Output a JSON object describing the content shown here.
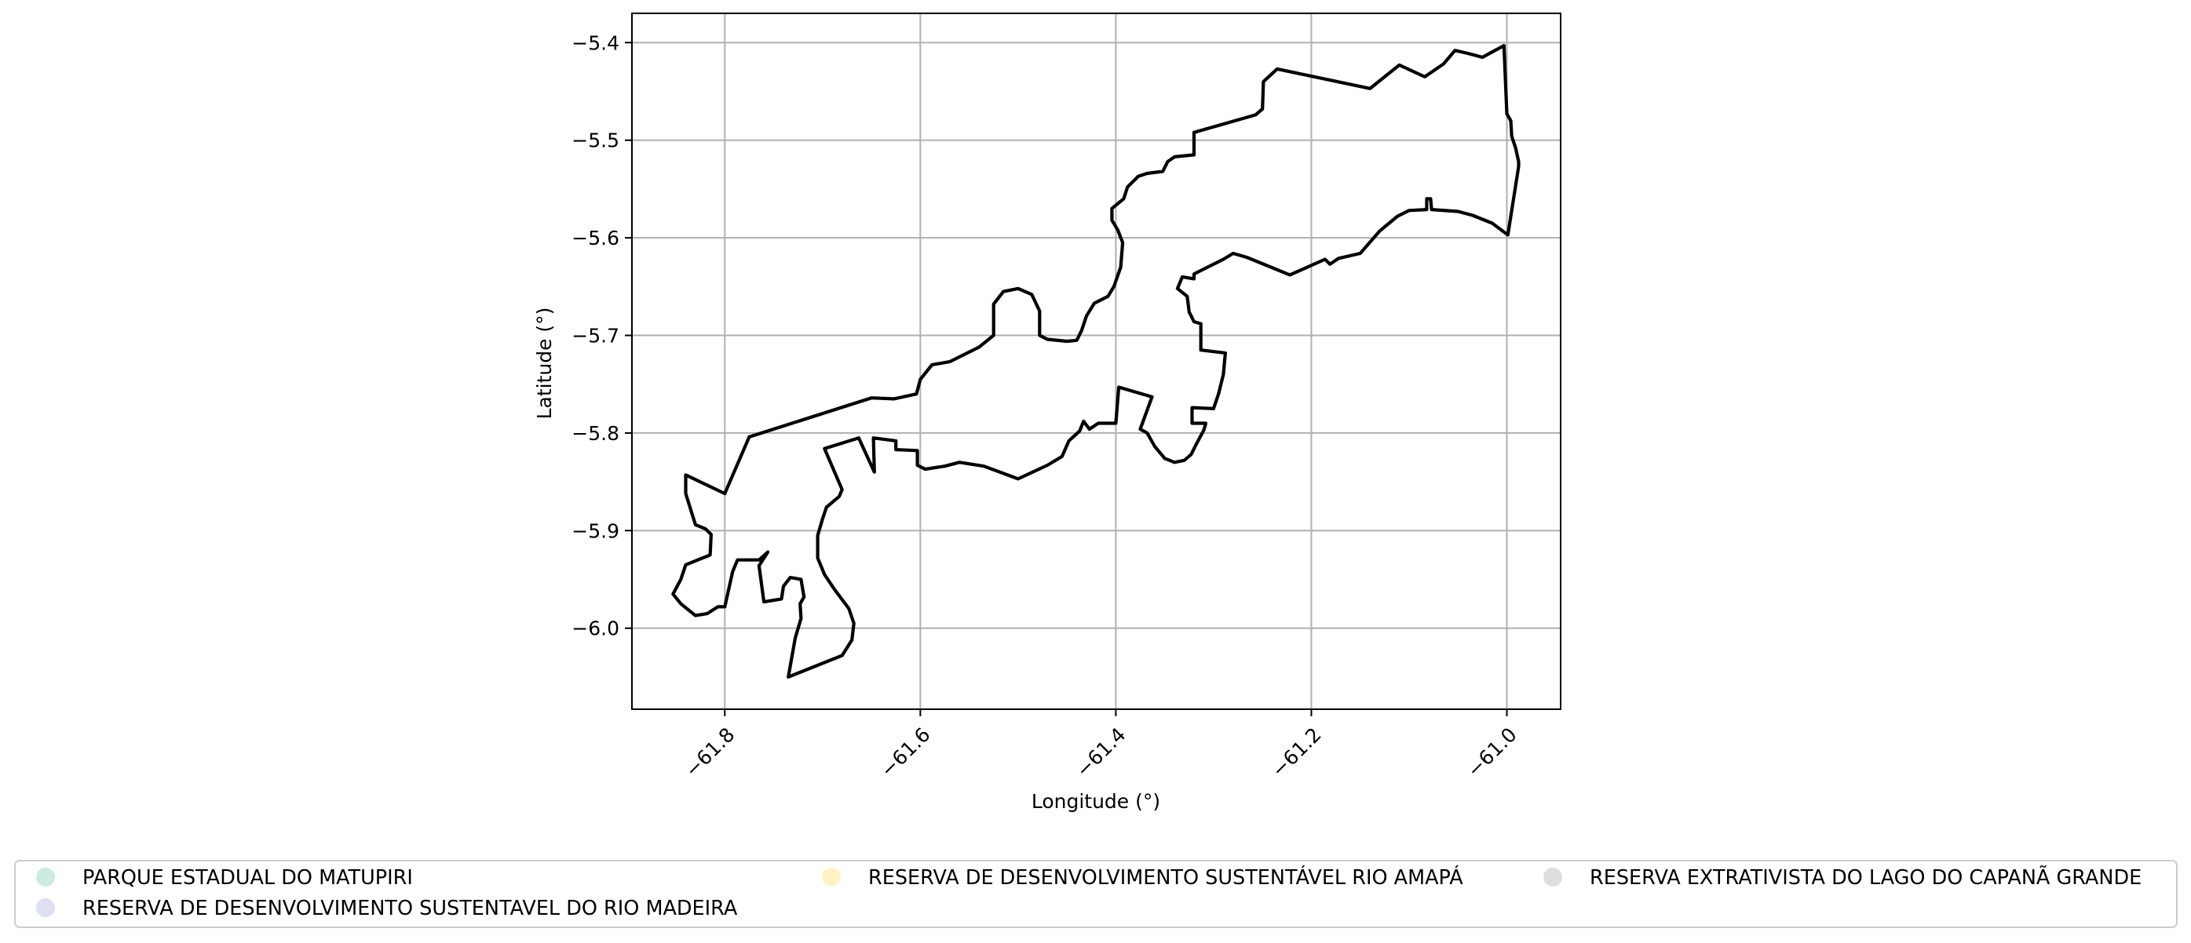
{
  "chart_data": {
    "type": "map",
    "xlabel": "Longitude (°)",
    "ylabel": "Latitude (°)",
    "xlim": [
      -61.895,
      -60.945
    ],
    "ylim": [
      -6.083,
      -5.37
    ],
    "grid": true,
    "x_ticks": [
      {
        "value": -61.8,
        "label": "−61.8"
      },
      {
        "value": -61.6,
        "label": "−61.6"
      },
      {
        "value": -61.4,
        "label": "−61.4"
      },
      {
        "value": -61.2,
        "label": "−61.2"
      },
      {
        "value": -61.0,
        "label": "−61.0"
      }
    ],
    "y_ticks": [
      {
        "value": -5.4,
        "label": "−5.4"
      },
      {
        "value": -5.5,
        "label": "−5.5"
      },
      {
        "value": -5.6,
        "label": "−5.6"
      },
      {
        "value": -5.7,
        "label": "−5.7"
      },
      {
        "value": -5.8,
        "label": "−5.8"
      },
      {
        "value": -5.9,
        "label": "−5.9"
      },
      {
        "value": -6.0,
        "label": "−6.0"
      }
    ],
    "legend_position": "bottom",
    "legend": [
      {
        "label": "PARQUE ESTADUAL DO MATUPIRI",
        "color": "#ccebe0"
      },
      {
        "label": "RESERVA DE DESENVOLVIMENTO SUSTENTÁVEL RIO AMAPÁ",
        "color": "#fff3c6"
      },
      {
        "label": "RESERVA EXTRATIVISTA DO LAGO DO CAPANÃ GRANDE",
        "color": "#dedede"
      },
      {
        "label": "RESERVA DE DESENVOLVIMENTO SUSTENTAVEL DO RIO MADEIRA",
        "color": "#dde1f1"
      }
    ],
    "boundary_color": "#000000",
    "boundary": [
      [
        -61.84,
        -5.843
      ],
      [
        -61.8,
        -5.862
      ],
      [
        -61.775,
        -5.804
      ],
      [
        -61.65,
        -5.764
      ],
      [
        -61.627,
        -5.765
      ],
      [
        -61.604,
        -5.76
      ],
      [
        -61.6,
        -5.745
      ],
      [
        -61.588,
        -5.73
      ],
      [
        -61.57,
        -5.727
      ],
      [
        -61.54,
        -5.712
      ],
      [
        -61.525,
        -5.7
      ],
      [
        -61.525,
        -5.668
      ],
      [
        -61.515,
        -5.655
      ],
      [
        -61.5,
        -5.652
      ],
      [
        -61.486,
        -5.658
      ],
      [
        -61.478,
        -5.675
      ],
      [
        -61.478,
        -5.7
      ],
      [
        -61.47,
        -5.704
      ],
      [
        -61.45,
        -5.706
      ],
      [
        -61.44,
        -5.705
      ],
      [
        -61.435,
        -5.695
      ],
      [
        -61.43,
        -5.68
      ],
      [
        -61.422,
        -5.667
      ],
      [
        -61.408,
        -5.66
      ],
      [
        -61.402,
        -5.65
      ],
      [
        -61.395,
        -5.63
      ],
      [
        -61.393,
        -5.605
      ],
      [
        -61.398,
        -5.592
      ],
      [
        -61.404,
        -5.582
      ],
      [
        -61.404,
        -5.57
      ],
      [
        -61.392,
        -5.56
      ],
      [
        -61.388,
        -5.548
      ],
      [
        -61.377,
        -5.537
      ],
      [
        -61.368,
        -5.534
      ],
      [
        -61.352,
        -5.532
      ],
      [
        -61.347,
        -5.522
      ],
      [
        -61.34,
        -5.517
      ],
      [
        -61.32,
        -5.515
      ],
      [
        -61.32,
        -5.492
      ],
      [
        -61.257,
        -5.474
      ],
      [
        -61.25,
        -5.468
      ],
      [
        -61.249,
        -5.44
      ],
      [
        -61.235,
        -5.427
      ],
      [
        -61.14,
        -5.447
      ],
      [
        -61.11,
        -5.423
      ],
      [
        -61.084,
        -5.435
      ],
      [
        -61.065,
        -5.422
      ],
      [
        -61.053,
        -5.408
      ],
      [
        -61.04,
        -5.411
      ],
      [
        -61.025,
        -5.415
      ],
      [
        -61.003,
        -5.403
      ],
      [
        -61.0,
        -5.473
      ],
      [
        -60.996,
        -5.48
      ],
      [
        -60.995,
        -5.496
      ],
      [
        -60.991,
        -5.508
      ],
      [
        -60.988,
        -5.522
      ],
      [
        -60.988,
        -5.527
      ],
      [
        -60.999,
        -5.597
      ],
      [
        -61.015,
        -5.585
      ],
      [
        -61.035,
        -5.577
      ],
      [
        -61.05,
        -5.573
      ],
      [
        -61.077,
        -5.571
      ],
      [
        -61.078,
        -5.56
      ],
      [
        -61.082,
        -5.56
      ],
      [
        -61.082,
        -5.571
      ],
      [
        -61.1,
        -5.572
      ],
      [
        -61.112,
        -5.578
      ],
      [
        -61.13,
        -5.593
      ],
      [
        -61.15,
        -5.616
      ],
      [
        -61.172,
        -5.621
      ],
      [
        -61.181,
        -5.627
      ],
      [
        -61.186,
        -5.622
      ],
      [
        -61.222,
        -5.638
      ],
      [
        -61.266,
        -5.62
      ],
      [
        -61.28,
        -5.616
      ],
      [
        -61.29,
        -5.622
      ],
      [
        -61.32,
        -5.637
      ],
      [
        -61.32,
        -5.642
      ],
      [
        -61.332,
        -5.64
      ],
      [
        -61.337,
        -5.652
      ],
      [
        -61.327,
        -5.66
      ],
      [
        -61.325,
        -5.676
      ],
      [
        -61.32,
        -5.686
      ],
      [
        -61.313,
        -5.688
      ],
      [
        -61.313,
        -5.715
      ],
      [
        -61.288,
        -5.718
      ],
      [
        -61.29,
        -5.74
      ],
      [
        -61.295,
        -5.76
      ],
      [
        -61.3,
        -5.775
      ],
      [
        -61.322,
        -5.774
      ],
      [
        -61.322,
        -5.79
      ],
      [
        -61.308,
        -5.79
      ],
      [
        -61.31,
        -5.797
      ],
      [
        -61.318,
        -5.812
      ],
      [
        -61.323,
        -5.822
      ],
      [
        -61.33,
        -5.828
      ],
      [
        -61.34,
        -5.83
      ],
      [
        -61.35,
        -5.826
      ],
      [
        -61.36,
        -5.814
      ],
      [
        -61.368,
        -5.8
      ],
      [
        -61.375,
        -5.796
      ],
      [
        -61.363,
        -5.763
      ],
      [
        -61.397,
        -5.753
      ],
      [
        -61.4,
        -5.79
      ],
      [
        -61.418,
        -5.79
      ],
      [
        -61.427,
        -5.796
      ],
      [
        -61.433,
        -5.788
      ],
      [
        -61.437,
        -5.798
      ],
      [
        -61.448,
        -5.808
      ],
      [
        -61.455,
        -5.824
      ],
      [
        -61.47,
        -5.833
      ],
      [
        -61.5,
        -5.847
      ],
      [
        -61.535,
        -5.834
      ],
      [
        -61.56,
        -5.83
      ],
      [
        -61.575,
        -5.834
      ],
      [
        -61.595,
        -5.837
      ],
      [
        -61.603,
        -5.833
      ],
      [
        -61.603,
        -5.818
      ],
      [
        -61.625,
        -5.817
      ],
      [
        -61.625,
        -5.808
      ],
      [
        -61.648,
        -5.805
      ],
      [
        -61.647,
        -5.84
      ],
      [
        -61.663,
        -5.805
      ],
      [
        -61.698,
        -5.816
      ],
      [
        -61.68,
        -5.858
      ],
      [
        -61.683,
        -5.865
      ],
      [
        -61.696,
        -5.876
      ],
      [
        -61.7,
        -5.888
      ],
      [
        -61.705,
        -5.905
      ],
      [
        -61.705,
        -5.928
      ],
      [
        -61.698,
        -5.945
      ],
      [
        -61.688,
        -5.96
      ],
      [
        -61.673,
        -5.98
      ],
      [
        -61.668,
        -5.995
      ],
      [
        -61.67,
        -6.012
      ],
      [
        -61.68,
        -6.028
      ],
      [
        -61.735,
        -6.05
      ],
      [
        -61.728,
        -6.01
      ],
      [
        -61.722,
        -5.99
      ],
      [
        -61.723,
        -5.975
      ],
      [
        -61.719,
        -5.968
      ],
      [
        -61.722,
        -5.95
      ],
      [
        -61.733,
        -5.948
      ],
      [
        -61.74,
        -5.957
      ],
      [
        -61.742,
        -5.97
      ],
      [
        -61.76,
        -5.973
      ],
      [
        -61.765,
        -5.936
      ],
      [
        -61.756,
        -5.922
      ],
      [
        -61.765,
        -5.93
      ],
      [
        -61.787,
        -5.93
      ],
      [
        -61.792,
        -5.942
      ],
      [
        -61.8,
        -5.978
      ],
      [
        -61.807,
        -5.978
      ],
      [
        -61.818,
        -5.985
      ],
      [
        -61.83,
        -5.987
      ],
      [
        -61.845,
        -5.975
      ],
      [
        -61.853,
        -5.965
      ],
      [
        -61.845,
        -5.95
      ],
      [
        -61.84,
        -5.935
      ],
      [
        -61.815,
        -5.925
      ],
      [
        -61.814,
        -5.904
      ],
      [
        -61.82,
        -5.898
      ],
      [
        -61.83,
        -5.894
      ],
      [
        -61.84,
        -5.862
      ],
      [
        -61.84,
        -5.843
      ]
    ]
  }
}
